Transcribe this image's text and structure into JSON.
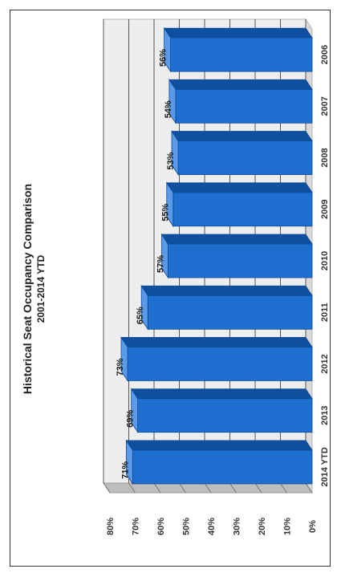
{
  "chart_data": {
    "type": "bar",
    "title": "Historical Seat Occupancy Comparison",
    "subtitle": "2001-2014 YTD",
    "categories": [
      "2006",
      "2007",
      "2008",
      "2009",
      "2010",
      "2011",
      "2012",
      "2013",
      "2014 YTD"
    ],
    "values": [
      56,
      54,
      53,
      55,
      57,
      65,
      73,
      69,
      71
    ],
    "data_labels": [
      "56%",
      "54%",
      "53%",
      "55%",
      "57%",
      "65%",
      "73%",
      "69%",
      "71%"
    ],
    "ylim": [
      0,
      80
    ],
    "yticks": [
      "0%",
      "10%",
      "20%",
      "30%",
      "40%",
      "50%",
      "60%",
      "70%",
      "80%"
    ],
    "grid": true,
    "bar_color": "#1e6fd0",
    "bar_top_color": "#5a9ae6",
    "bar_side_color": "#0f4fa0"
  }
}
